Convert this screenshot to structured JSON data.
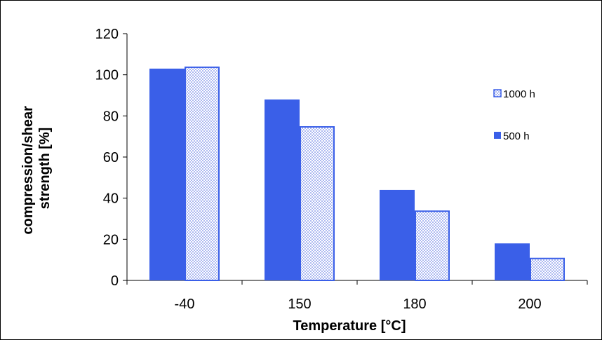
{
  "chart_data": {
    "type": "bar",
    "title": "",
    "xlabel": "Temperature [°C]",
    "ylabel_lines": [
      "compression/shear",
      "strength [%]"
    ],
    "categories": [
      "-40",
      "150",
      "180",
      "200"
    ],
    "ylim": [
      0,
      120
    ],
    "yticks": [
      0,
      20,
      40,
      60,
      80,
      100,
      120
    ],
    "grid": false,
    "legend_position": "right",
    "series": [
      {
        "name": "500 h",
        "values": [
          103,
          88,
          44,
          18
        ],
        "color": "#3A5FE8",
        "pattern": "solid"
      },
      {
        "name": "1000 h",
        "values": [
          104,
          75,
          34,
          11
        ],
        "color": "#3A5FE8",
        "pattern": "dotted"
      }
    ],
    "legend_order": [
      1,
      0
    ]
  }
}
